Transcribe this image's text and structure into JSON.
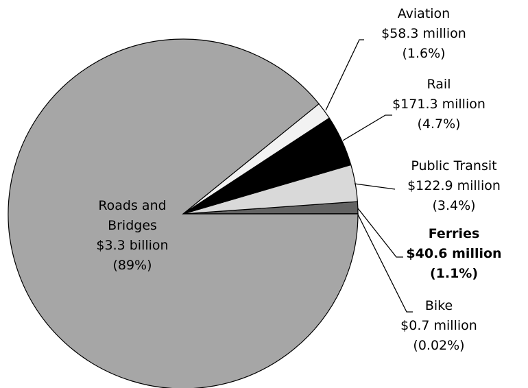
{
  "chart_data": {
    "type": "pie",
    "categories": [
      "Bike",
      "Ferries",
      "Public Transit",
      "Rail",
      "Aviation",
      "Roads and Bridges"
    ],
    "values": [
      0.02,
      1.1,
      3.4,
      4.7,
      1.6,
      89
    ],
    "value_labels": [
      "(0.02%)",
      "(1.1%)",
      "(3.4%)",
      "(4.7%)",
      "(1.6%)",
      "(89%)"
    ],
    "amounts": [
      "$0.7 million",
      "$40.6 million",
      "$122.9 million",
      "$171.3 million",
      "$58.3 million",
      "$3.3 billion"
    ],
    "colors": [
      "#ffffff",
      "#636363",
      "#d9d9d9",
      "#000000",
      "#f2f2f2",
      "#a6a6a6"
    ]
  }
}
